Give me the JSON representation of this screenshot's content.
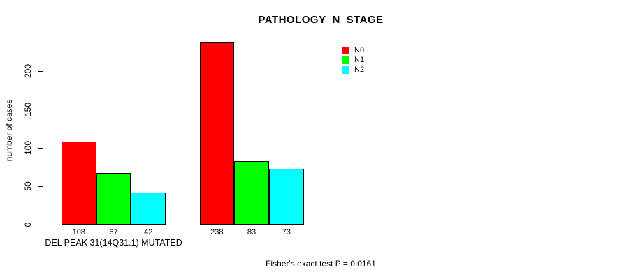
{
  "chart_data": {
    "type": "bar",
    "title": "PATHOLOGY_N_STAGE",
    "xlabel": "",
    "ylabel": "number of cases",
    "categories": [
      "DEL PEAK 31(14Q31.1) MUTATED",
      ""
    ],
    "series": [
      {
        "name": "N0",
        "color": "#ff0000",
        "values": [
          108,
          238
        ]
      },
      {
        "name": "N1",
        "color": "#00ff00",
        "values": [
          67,
          83
        ]
      },
      {
        "name": "N2",
        "color": "#00ffff",
        "values": [
          42,
          73
        ]
      }
    ],
    "yticks": [
      0,
      50,
      100,
      150,
      200
    ],
    "ylim": [
      0,
      240
    ],
    "grid": false,
    "bar_value_labels_shown": true,
    "legend_position": "top-right",
    "bar_border_color": "#000000",
    "footnote": "Fisher's exact test P = 0.0161"
  }
}
